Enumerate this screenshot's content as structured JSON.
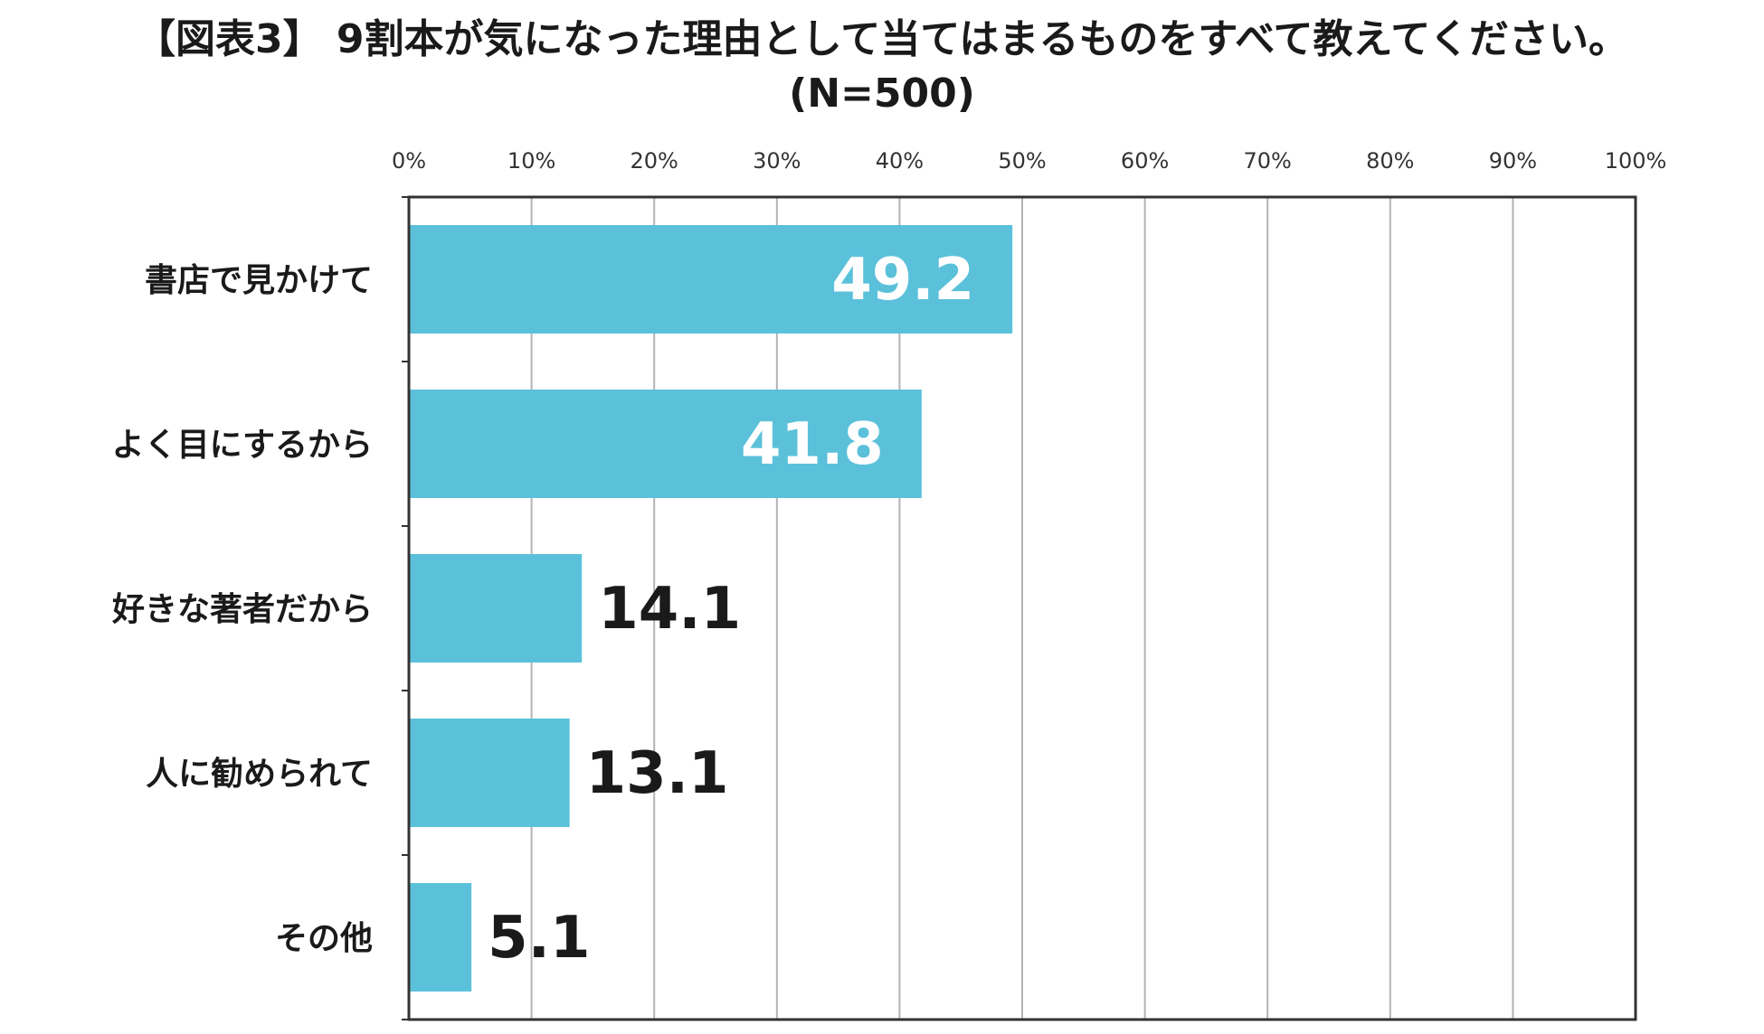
{
  "chart_data": {
    "type": "bar",
    "orientation": "horizontal",
    "title": "【図表3】 9割本が気になった理由として当てはまるものをすべて教えてください。",
    "subtitle": "(N=500)",
    "categories": [
      "書店で見かけて",
      "よく目にするから",
      "好きな著者だから",
      "人に勧められて",
      "その他"
    ],
    "values": [
      49.2,
      41.8,
      14.1,
      13.1,
      5.1
    ],
    "value_labels": [
      "49.2",
      "41.8",
      "14.1",
      "13.1",
      "5.1"
    ],
    "xlim": [
      0,
      100
    ],
    "xticks": [
      "0%",
      "10%",
      "20%",
      "30%",
      "40%",
      "50%",
      "60%",
      "70%",
      "80%",
      "90%",
      "100%"
    ],
    "grid": true,
    "xlabel": "",
    "ylabel": "",
    "bar_color": "#5bc1da",
    "label_inside_color": "#ffffff",
    "label_outside_color": "#1a1a1a"
  }
}
